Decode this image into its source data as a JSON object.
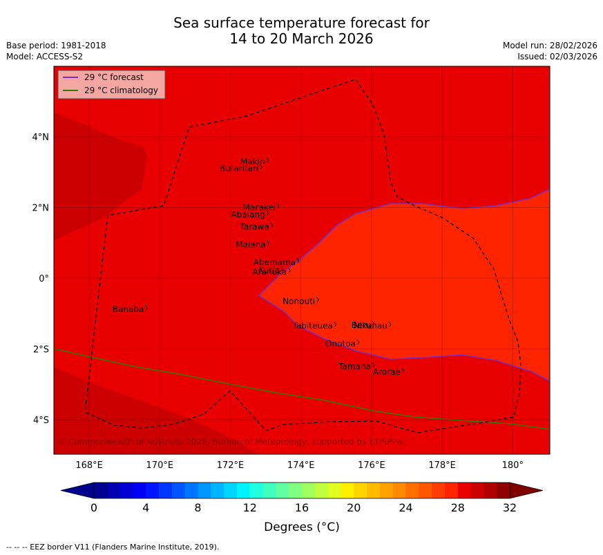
{
  "title_line1": "Sea surface temperature forecast for",
  "title_line2": "14 to 20 March 2026",
  "base_period": "Base period: 1981-2018",
  "model": "Model: ACCESS-S2",
  "model_run": "Model run: 28/02/2026",
  "issued": "Issued: 02/03/2026",
  "legend": {
    "forecast_label": "29 °C  forecast",
    "climatology_label": "29 °C  climatology",
    "forecast_color": "#7b2fc0",
    "climatology_color": "#2e7d00"
  },
  "axes": {
    "lat_labels": [
      {
        "label": "4°N",
        "value": 4
      },
      {
        "label": "2°N",
        "value": 2
      },
      {
        "label": "0°",
        "value": 0
      },
      {
        "label": "2°S",
        "value": -2
      },
      {
        "label": "4°S",
        "value": -4
      }
    ],
    "lon_labels": [
      {
        "label": "168°E",
        "value": 168
      },
      {
        "label": "170°E",
        "value": 170
      },
      {
        "label": "172°E",
        "value": 172
      },
      {
        "label": "174°E",
        "value": 174
      },
      {
        "label": "176°E",
        "value": 176
      },
      {
        "label": "178°E",
        "value": 178
      },
      {
        "label": "180°",
        "value": 180
      }
    ],
    "lon_range": [
      167,
      181
    ],
    "lat_range": [
      -5,
      6
    ]
  },
  "islands": [
    {
      "name": "Makin",
      "lon": 172.98,
      "lat": 3.3
    },
    {
      "name": "Butaritari",
      "lon": 172.8,
      "lat": 3.1
    },
    {
      "name": "Marakei",
      "lon": 173.28,
      "lat": 2.0
    },
    {
      "name": "Abaiang",
      "lon": 172.98,
      "lat": 1.8
    },
    {
      "name": "Tarawa",
      "lon": 173.1,
      "lat": 1.45
    },
    {
      "name": "Maiana",
      "lon": 173.0,
      "lat": 0.95
    },
    {
      "name": "Abemama",
      "lon": 173.85,
      "lat": 0.45
    },
    {
      "name": "Kuria",
      "lon": 173.4,
      "lat": 0.22
    },
    {
      "name": "Aranuka",
      "lon": 173.6,
      "lat": 0.18
    },
    {
      "name": "Nonouti",
      "lon": 174.4,
      "lat": -0.65
    },
    {
      "name": "Banaba",
      "lon": 169.55,
      "lat": -0.88
    },
    {
      "name": "Tabiteuea",
      "lon": 174.9,
      "lat": -1.35
    },
    {
      "name": "Beru",
      "lon": 175.98,
      "lat": -1.33
    },
    {
      "name": "Nikunau",
      "lon": 176.45,
      "lat": -1.35
    },
    {
      "name": "Onotoa",
      "lon": 175.55,
      "lat": -1.85
    },
    {
      "name": "Tamana",
      "lon": 175.98,
      "lat": -2.5
    },
    {
      "name": "Arorae",
      "lon": 176.82,
      "lat": -2.65
    }
  ],
  "copyright": "© Commonwealth of Australia 2026, Bureau of Meteorology, supported by COSPPac",
  "colorbar": {
    "ticks": [
      "0",
      "4",
      "8",
      "12",
      "16",
      "20",
      "24",
      "28",
      "32"
    ],
    "label": "Degrees (°C)",
    "min": 0,
    "max": 32,
    "step": 1,
    "colors": [
      "#00008f",
      "#0000b0",
      "#0000d2",
      "#0000f4",
      "#0015ff",
      "#0035ff",
      "#0055ff",
      "#0075ff",
      "#0095ff",
      "#00b5ff",
      "#00d5ff",
      "#00f4fb",
      "#20ffdf",
      "#40ffbf",
      "#60ff9f",
      "#80ff80",
      "#9fff60",
      "#bfff40",
      "#dfff20",
      "#ffee00",
      "#ffd400",
      "#ffbb00",
      "#ffa200",
      "#ff8900",
      "#ff7000",
      "#ff5600",
      "#ff3d00",
      "#ff2400",
      "#e80000",
      "#cc0000",
      "#b00000",
      "#8f0000"
    ],
    "under_color": "#00008f",
    "over_color": "#800000"
  },
  "footnote": "--  --  -- EEZ border V11 (Flanders Marine Institute, 2019)."
}
